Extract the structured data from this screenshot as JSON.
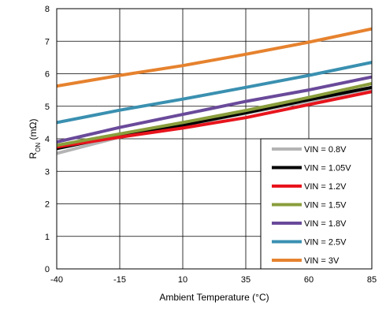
{
  "chart_data": {
    "type": "line",
    "title": "",
    "xlabel": "Ambient Temperature (°C)",
    "ylabel_main": "R",
    "ylabel_sub": "ON",
    "ylabel_unit": " (mΩ)",
    "x_ticks": [
      -40,
      -15,
      10,
      35,
      60,
      85
    ],
    "y_ticks": [
      0,
      1,
      2,
      3,
      4,
      5,
      6,
      7,
      8
    ],
    "xlim": [
      -40,
      85
    ],
    "ylim": [
      0,
      8
    ],
    "grid": true,
    "legend_position": "bottom-right",
    "x": [
      -40,
      -15,
      10,
      35,
      60,
      85
    ],
    "series": [
      {
        "name": "VIN = 0.8V",
        "color": "#b4b4b4",
        "values": [
          3.55,
          4.05,
          4.4,
          4.78,
          5.15,
          5.55
        ]
      },
      {
        "name": "VIN = 1.05V",
        "color": "#000000",
        "values": [
          3.7,
          4.1,
          4.42,
          4.8,
          5.2,
          5.58
        ]
      },
      {
        "name": "VIN = 1.2V",
        "color": "#e8141c",
        "values": [
          3.75,
          4.05,
          4.33,
          4.65,
          5.05,
          5.45
        ]
      },
      {
        "name": "VIN = 1.5V",
        "color": "#8a9e3c",
        "values": [
          3.8,
          4.15,
          4.5,
          4.87,
          5.27,
          5.7
        ]
      },
      {
        "name": "VIN = 1.8V",
        "color": "#6a4a9a",
        "values": [
          3.9,
          4.35,
          4.75,
          5.15,
          5.5,
          5.9
        ]
      },
      {
        "name": "VIN = 2.5V",
        "color": "#3a90b0",
        "values": [
          4.5,
          4.88,
          5.22,
          5.58,
          5.95,
          6.35
        ]
      },
      {
        "name": "VIN = 3V",
        "color": "#e6822e",
        "values": [
          5.62,
          5.95,
          6.25,
          6.6,
          6.97,
          7.38
        ]
      }
    ]
  }
}
